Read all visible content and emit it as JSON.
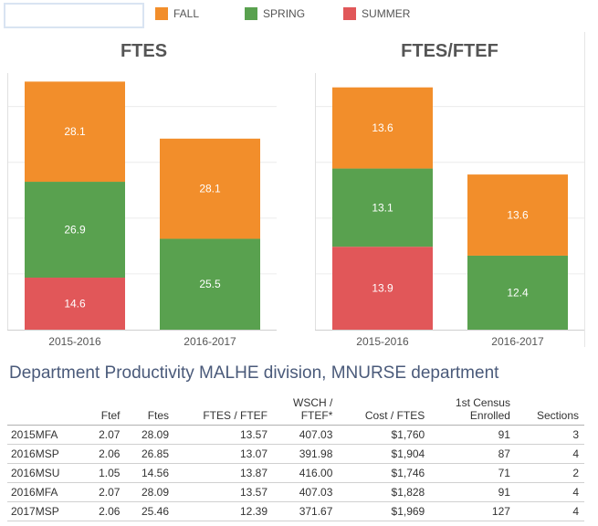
{
  "legend": {
    "items": [
      {
        "label": "FALL",
        "color": "#f28e2b"
      },
      {
        "label": "SPRING",
        "color": "#59a14f"
      },
      {
        "label": "SUMMER",
        "color": "#e15759"
      }
    ]
  },
  "chart_data": [
    {
      "type": "bar",
      "stacked": true,
      "title": "FTES",
      "categories": [
        "2015-2016",
        "2016-2017"
      ],
      "series": [
        {
          "name": "SUMMER",
          "color": "#e15759",
          "values": [
            14.6,
            null
          ]
        },
        {
          "name": "SPRING",
          "color": "#59a14f",
          "values": [
            26.9,
            25.5
          ]
        },
        {
          "name": "FALL",
          "color": "#f28e2b",
          "values": [
            28.1,
            28.1
          ]
        }
      ],
      "ylim": [
        0,
        72
      ],
      "grid": true
    },
    {
      "type": "bar",
      "stacked": true,
      "title": "FTES/FTEF",
      "categories": [
        "2015-2016",
        "2016-2017"
      ],
      "series": [
        {
          "name": "SUMMER",
          "color": "#e15759",
          "values": [
            13.9,
            null
          ]
        },
        {
          "name": "SPRING",
          "color": "#59a14f",
          "values": [
            13.1,
            12.4
          ]
        },
        {
          "name": "FALL",
          "color": "#f28e2b",
          "values": [
            13.6,
            13.6
          ]
        }
      ],
      "ylim": [
        0,
        43
      ],
      "grid": true
    }
  ],
  "table": {
    "title": "Department Productivity MALHE division, MNURSE department",
    "headers": [
      "",
      "Ftef",
      "Ftes",
      "FTES / FTEF",
      "WSCH /\nFTEF*",
      "Cost / FTES",
      "1st Census\nEnrolled",
      "Sections"
    ],
    "rows": [
      [
        "2015MFA",
        "2.07",
        "28.09",
        "13.57",
        "407.03",
        "$1,760",
        "91",
        "3"
      ],
      [
        "2016MSP",
        "2.06",
        "26.85",
        "13.07",
        "391.98",
        "$1,904",
        "87",
        "4"
      ],
      [
        "2016MSU",
        "1.05",
        "14.56",
        "13.87",
        "416.00",
        "$1,746",
        "71",
        "2"
      ],
      [
        "2016MFA",
        "2.07",
        "28.09",
        "13.57",
        "407.03",
        "$1,828",
        "91",
        "4"
      ],
      [
        "2017MSP",
        "2.06",
        "25.46",
        "12.39",
        "371.67",
        "$1,969",
        "127",
        "4"
      ]
    ]
  }
}
